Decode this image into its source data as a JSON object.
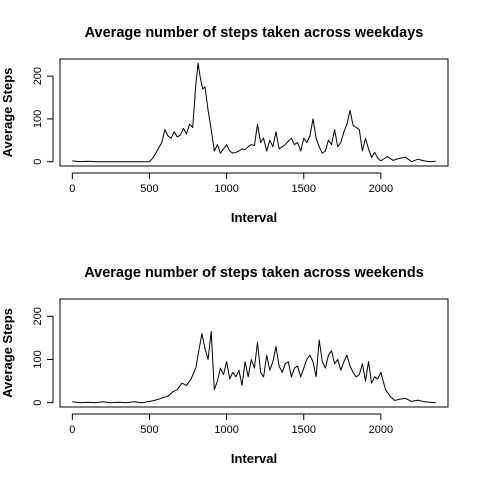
{
  "chart_data": [
    {
      "type": "line",
      "title": "Average number of steps taken across weekdays",
      "xlabel": "Interval",
      "ylabel": "Average Steps",
      "xlim": [
        -80,
        2435
      ],
      "ylim": [
        -10,
        240
      ],
      "xticks": [
        0,
        500,
        1000,
        1500,
        2000
      ],
      "yticks": [
        0,
        100,
        200
      ],
      "x": [
        0,
        50,
        100,
        150,
        200,
        250,
        300,
        350,
        400,
        450,
        500,
        520,
        540,
        560,
        580,
        600,
        620,
        640,
        660,
        680,
        700,
        720,
        740,
        760,
        780,
        800,
        815,
        830,
        845,
        860,
        880,
        900,
        920,
        940,
        960,
        980,
        1000,
        1020,
        1040,
        1060,
        1080,
        1100,
        1120,
        1140,
        1160,
        1180,
        1200,
        1220,
        1240,
        1260,
        1280,
        1300,
        1320,
        1340,
        1360,
        1380,
        1400,
        1420,
        1440,
        1460,
        1480,
        1500,
        1520,
        1540,
        1560,
        1580,
        1600,
        1620,
        1640,
        1660,
        1680,
        1700,
        1720,
        1740,
        1760,
        1780,
        1800,
        1820,
        1840,
        1860,
        1880,
        1900,
        1920,
        1940,
        1960,
        1980,
        2000,
        2040,
        2080,
        2120,
        2160,
        2200,
        2240,
        2280,
        2320,
        2355
      ],
      "y": [
        2,
        0,
        1,
        0,
        0,
        0,
        0,
        0,
        0,
        0,
        0,
        8,
        20,
        32,
        45,
        75,
        60,
        55,
        70,
        58,
        62,
        78,
        65,
        88,
        80,
        180,
        230,
        195,
        170,
        175,
        120,
        75,
        25,
        40,
        20,
        30,
        40,
        25,
        20,
        22,
        25,
        30,
        28,
        35,
        40,
        38,
        88,
        45,
        55,
        25,
        50,
        35,
        70,
        30,
        35,
        40,
        48,
        55,
        40,
        45,
        25,
        55,
        45,
        60,
        100,
        55,
        35,
        20,
        25,
        50,
        40,
        75,
        35,
        45,
        70,
        88,
        120,
        85,
        80,
        75,
        25,
        55,
        30,
        10,
        22,
        8,
        2,
        12,
        3,
        8,
        10,
        0,
        6,
        2,
        0,
        1
      ],
      "points_count": 96
    },
    {
      "type": "line",
      "title": "Average number of steps taken across weekends",
      "xlabel": "Interval",
      "ylabel": "Average Steps",
      "xlim": [
        -80,
        2435
      ],
      "ylim": [
        -10,
        240
      ],
      "xticks": [
        0,
        500,
        1000,
        1500,
        2000
      ],
      "yticks": [
        0,
        100,
        200
      ],
      "x": [
        0,
        50,
        100,
        150,
        200,
        250,
        300,
        350,
        400,
        450,
        500,
        530,
        560,
        590,
        620,
        650,
        680,
        710,
        740,
        770,
        800,
        820,
        840,
        860,
        880,
        900,
        920,
        940,
        960,
        980,
        1000,
        1020,
        1040,
        1060,
        1080,
        1100,
        1120,
        1140,
        1160,
        1180,
        1200,
        1220,
        1240,
        1260,
        1280,
        1300,
        1320,
        1340,
        1360,
        1380,
        1400,
        1420,
        1440,
        1460,
        1480,
        1500,
        1520,
        1540,
        1560,
        1580,
        1600,
        1620,
        1640,
        1660,
        1680,
        1700,
        1720,
        1740,
        1760,
        1780,
        1800,
        1820,
        1840,
        1860,
        1880,
        1900,
        1920,
        1940,
        1960,
        1980,
        2000,
        2030,
        2060,
        2090,
        2120,
        2160,
        2200,
        2240,
        2280,
        2320,
        2355
      ],
      "y": [
        2,
        0,
        1,
        0,
        2,
        0,
        1,
        0,
        2,
        0,
        3,
        5,
        8,
        12,
        15,
        25,
        30,
        45,
        40,
        55,
        80,
        120,
        160,
        125,
        100,
        165,
        30,
        50,
        80,
        65,
        95,
        55,
        70,
        60,
        75,
        40,
        95,
        60,
        100,
        80,
        140,
        70,
        60,
        110,
        75,
        95,
        130,
        85,
        70,
        90,
        95,
        60,
        80,
        85,
        60,
        80,
        100,
        110,
        95,
        60,
        145,
        95,
        80,
        110,
        120,
        90,
        100,
        75,
        95,
        110,
        85,
        70,
        60,
        65,
        90,
        50,
        95,
        45,
        60,
        55,
        70,
        30,
        15,
        5,
        8,
        10,
        3,
        6,
        2,
        1,
        0
      ]
    }
  ]
}
